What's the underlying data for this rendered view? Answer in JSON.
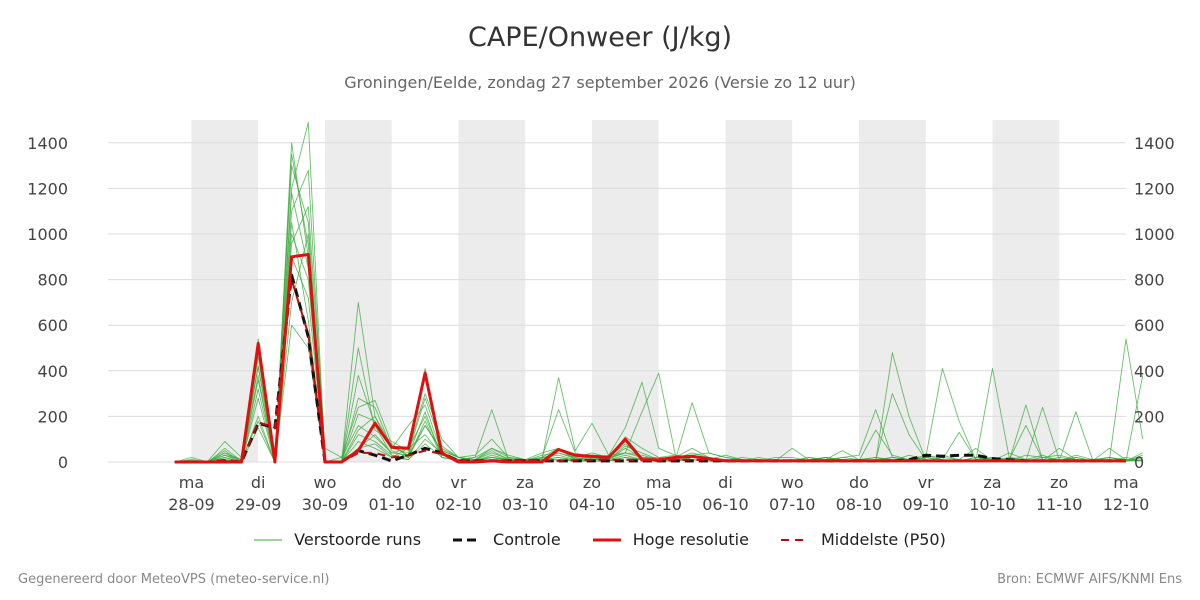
{
  "title": "CAPE/Onweer (J/kg)",
  "subtitle": "Groningen/Eelde, zondag 27 september 2026 (Versie zo 12 uur)",
  "footer_left": "Gegenereerd door MeteoVPS (meteo-service.nl)",
  "footer_right": "Bron: ECMWF AIFS/KNMI Ens",
  "chart_data": {
    "type": "line",
    "title": "CAPE/Onweer (J/kg)",
    "x_unit": "days from ma 28-09",
    "xlim": [
      -1.25,
      14
    ],
    "ylim": [
      0,
      1500
    ],
    "yticks": [
      0,
      200,
      400,
      600,
      800,
      1000,
      1200,
      1400
    ],
    "x_tick_labels": [
      {
        "day": "ma",
        "date": "28-09"
      },
      {
        "day": "di",
        "date": "29-09"
      },
      {
        "day": "wo",
        "date": "30-09"
      },
      {
        "day": "do",
        "date": "01-10"
      },
      {
        "day": "vr",
        "date": "02-10"
      },
      {
        "day": "za",
        "date": "03-10"
      },
      {
        "day": "zo",
        "date": "04-10"
      },
      {
        "day": "ma",
        "date": "05-10"
      },
      {
        "day": "di",
        "date": "06-10"
      },
      {
        "day": "wo",
        "date": "07-10"
      },
      {
        "day": "do",
        "date": "08-10"
      },
      {
        "day": "vr",
        "date": "09-10"
      },
      {
        "day": "za",
        "date": "10-10"
      },
      {
        "day": "zo",
        "date": "11-10"
      },
      {
        "day": "ma",
        "date": "12-10"
      }
    ],
    "shaded_days": [
      0,
      2,
      4,
      6,
      8,
      10,
      12,
      14
    ],
    "grid": true,
    "legend_position": "bottom",
    "colors": {
      "ensemble": "#3aa83a",
      "control": "#111111",
      "hires": "#e01010",
      "median": "#b01010",
      "shade": "#ececec",
      "grid": "#dcdcdc"
    },
    "legend": {
      "ensemble": "Verstoorde runs",
      "control": "Controle",
      "hires": "Hoge resolutie",
      "median": "Middelste (P50)"
    },
    "series": [
      {
        "name": "Hoge resolutie",
        "key": "hires",
        "x": [
          -0.25,
          0,
          0.25,
          0.5,
          0.75,
          1,
          1.25,
          1.5,
          1.75,
          2,
          2.25,
          2.5,
          2.75,
          3,
          3.25,
          3.5,
          3.75,
          4,
          4.25,
          4.5,
          4.75,
          5,
          5.25,
          5.5,
          5.75,
          6,
          6.25,
          6.5,
          6.75,
          7,
          7.25,
          7.5,
          7.75,
          8,
          8.5,
          9,
          9.5,
          10,
          10.5,
          11,
          11.5,
          12,
          12.5,
          13,
          13.5,
          14
        ],
        "y": [
          0,
          0,
          0,
          0,
          0,
          520,
          0,
          900,
          910,
          0,
          0,
          50,
          170,
          65,
          60,
          390,
          40,
          0,
          0,
          5,
          0,
          0,
          0,
          55,
          30,
          25,
          20,
          100,
          10,
          10,
          20,
          25,
          15,
          5,
          5,
          5,
          5,
          5,
          5,
          5,
          5,
          5,
          5,
          5,
          5,
          5
        ]
      },
      {
        "name": "Controle",
        "key": "control",
        "x": [
          -0.25,
          0,
          0.25,
          0.5,
          0.75,
          1,
          1.25,
          1.5,
          1.75,
          2,
          2.25,
          2.5,
          2.75,
          3,
          3.25,
          3.5,
          3.75,
          4,
          5,
          6,
          7,
          8,
          9,
          10,
          10.5,
          10.75,
          11,
          11.25,
          11.5,
          11.75,
          12,
          12.5,
          13,
          13.5,
          14
        ],
        "y": [
          0,
          0,
          0,
          5,
          0,
          170,
          150,
          820,
          550,
          0,
          0,
          50,
          30,
          5,
          30,
          60,
          40,
          5,
          5,
          5,
          5,
          5,
          5,
          5,
          5,
          10,
          30,
          25,
          30,
          30,
          15,
          5,
          5,
          5,
          5
        ]
      },
      {
        "name": "Middelste (P50)",
        "key": "median",
        "x": [
          -0.25,
          0,
          0.25,
          0.5,
          0.75,
          1,
          1.25,
          1.5,
          1.75,
          2,
          2.25,
          2.5,
          2.75,
          3,
          3.25,
          3.5,
          3.75,
          4,
          4.5,
          5,
          5.5,
          6,
          6.5,
          7,
          7.5,
          8,
          9,
          10,
          11,
          12,
          13,
          14
        ],
        "y": [
          0,
          0,
          0,
          10,
          0,
          175,
          150,
          800,
          560,
          0,
          0,
          40,
          40,
          20,
          30,
          50,
          35,
          5,
          5,
          10,
          5,
          10,
          10,
          5,
          10,
          5,
          5,
          5,
          5,
          5,
          5,
          5
        ]
      }
    ],
    "ensemble_runs": [
      [
        0,
        0,
        0,
        10,
        0,
        320,
        0,
        1400,
        900,
        0,
        0,
        60,
        120,
        40,
        60,
        200,
        30,
        10,
        5,
        20,
        5,
        5,
        30,
        40,
        20,
        15,
        10,
        60,
        20,
        10,
        20,
        30,
        40,
        20,
        10,
        5,
        10,
        5,
        20,
        10,
        5,
        5,
        10,
        5,
        30,
        10,
        5,
        10,
        5,
        20,
        5,
        30,
        20,
        10,
        5,
        5,
        10,
        5,
        20
      ],
      [
        0,
        20,
        0,
        40,
        10,
        180,
        0,
        1200,
        1490,
        0,
        0,
        700,
        200,
        50,
        20,
        160,
        50,
        20,
        10,
        20,
        10,
        5,
        10,
        20,
        5,
        10,
        20,
        40,
        30,
        10,
        10,
        260,
        40,
        20,
        10,
        5,
        10,
        5,
        10,
        20,
        5,
        10,
        20,
        5,
        10,
        20,
        5,
        5,
        10,
        5,
        20,
        5,
        10,
        5,
        10,
        5,
        20,
        5,
        10
      ],
      [
        0,
        0,
        5,
        90,
        20,
        420,
        10,
        1100,
        1280,
        0,
        0,
        380,
        160,
        30,
        10,
        100,
        40,
        10,
        20,
        230,
        10,
        5,
        20,
        230,
        40,
        20,
        30,
        40,
        220,
        390,
        30,
        20,
        10,
        5,
        20,
        10,
        5,
        60,
        10,
        20,
        10,
        5,
        140,
        30,
        10,
        20,
        410,
        180,
        10,
        20,
        5,
        10,
        30,
        5,
        20,
        5,
        10,
        5,
        20
      ],
      [
        0,
        0,
        0,
        30,
        10,
        540,
        0,
        960,
        1120,
        60,
        20,
        240,
        270,
        80,
        20,
        410,
        60,
        20,
        30,
        100,
        20,
        10,
        20,
        60,
        10,
        30,
        20,
        90,
        10,
        10,
        20,
        60,
        20,
        10,
        5,
        10,
        5,
        10,
        5,
        20,
        5,
        10,
        20,
        10,
        5,
        20,
        30,
        10,
        60,
        5,
        10,
        5,
        20,
        30,
        10,
        5,
        60,
        10,
        5
      ],
      [
        0,
        10,
        0,
        20,
        0,
        480,
        0,
        1300,
        1050,
        0,
        0,
        500,
        140,
        90,
        50,
        300,
        100,
        20,
        10,
        60,
        20,
        10,
        10,
        370,
        50,
        170,
        30,
        150,
        350,
        60,
        30,
        20,
        10,
        30,
        10,
        5,
        20,
        20,
        5,
        10,
        50,
        10,
        5,
        300,
        120,
        10,
        5,
        10,
        5,
        410,
        20,
        10,
        5,
        60,
        10,
        5,
        20,
        5,
        40
      ],
      [
        0,
        0,
        0,
        10,
        0,
        200,
        0,
        700,
        1000,
        0,
        0,
        210,
        180,
        60,
        160,
        250,
        40,
        10,
        20,
        60,
        30,
        10,
        40,
        60,
        10,
        20,
        20,
        80,
        20,
        20,
        30,
        10,
        5,
        10,
        5,
        20,
        5,
        10,
        10,
        5,
        20,
        10,
        5,
        20,
        10,
        30,
        10,
        5,
        20,
        5,
        10,
        160,
        10,
        5,
        220,
        10,
        5,
        20,
        5
      ],
      [
        0,
        5,
        0,
        60,
        5,
        360,
        0,
        1180,
        850,
        0,
        20,
        160,
        110,
        40,
        30,
        220,
        20,
        10,
        5,
        30,
        10,
        5,
        20,
        30,
        10,
        10,
        15,
        40,
        20,
        10,
        10,
        20,
        10,
        5,
        10,
        5,
        10,
        5,
        20,
        10,
        5,
        10,
        5,
        480,
        200,
        10,
        5,
        10,
        5,
        20,
        5,
        250,
        10,
        5,
        20,
        5,
        10,
        5,
        380
      ],
      [
        0,
        0,
        0,
        40,
        0,
        280,
        0,
        900,
        720,
        0,
        0,
        120,
        90,
        30,
        20,
        180,
        20,
        10,
        5,
        20,
        10,
        5,
        10,
        20,
        10,
        10,
        10,
        30,
        10,
        10,
        10,
        10,
        5,
        5,
        5,
        5,
        5,
        5,
        10,
        5,
        5,
        5,
        5,
        10,
        5,
        10,
        5,
        5,
        10,
        5,
        5,
        10,
        5,
        5,
        10,
        5,
        5,
        10,
        5
      ],
      [
        0,
        0,
        0,
        20,
        0,
        420,
        0,
        1050,
        620,
        0,
        0,
        90,
        60,
        20,
        60,
        120,
        30,
        10,
        5,
        10,
        5,
        5,
        10,
        10,
        5,
        5,
        5,
        20,
        10,
        5,
        5,
        20,
        10,
        5,
        5,
        10,
        5,
        5,
        5,
        10,
        20,
        30,
        230,
        20,
        10,
        5,
        10,
        5,
        20,
        10,
        5,
        5,
        10,
        5,
        30,
        10,
        5,
        540,
        100
      ],
      [
        0,
        10,
        0,
        30,
        0,
        460,
        0,
        1350,
        950,
        0,
        0,
        280,
        240,
        60,
        40,
        280,
        70,
        20,
        10,
        40,
        15,
        5,
        15,
        50,
        20,
        40,
        20,
        110,
        60,
        20,
        15,
        40,
        20,
        10,
        5,
        10,
        5,
        10,
        5,
        20,
        10,
        5,
        10,
        20,
        10,
        5,
        20,
        10,
        5,
        20,
        10,
        5,
        240,
        10,
        5,
        10,
        20,
        5,
        30
      ],
      [
        0,
        0,
        0,
        50,
        0,
        380,
        0,
        1000,
        800,
        0,
        0,
        140,
        200,
        70,
        30,
        160,
        50,
        20,
        10,
        50,
        10,
        5,
        10,
        40,
        15,
        20,
        10,
        70,
        40,
        10,
        10,
        30,
        15,
        10,
        5,
        10,
        5,
        5,
        10,
        5,
        10,
        10,
        5,
        10,
        5,
        20,
        10,
        130,
        10,
        5,
        40,
        10,
        5,
        20,
        10,
        5,
        20,
        10,
        5
      ],
      [
        0,
        0,
        0,
        10,
        0,
        150,
        0,
        600,
        500,
        0,
        0,
        60,
        80,
        20,
        10,
        80,
        20,
        5,
        5,
        10,
        5,
        5,
        5,
        10,
        5,
        5,
        5,
        20,
        10,
        5,
        5,
        10,
        5,
        5,
        5,
        5,
        5,
        5,
        5,
        5,
        5,
        5,
        5,
        5,
        5,
        5,
        5,
        5,
        5,
        5,
        5,
        5,
        5,
        5,
        5,
        5,
        5,
        5,
        5
      ]
    ]
  }
}
